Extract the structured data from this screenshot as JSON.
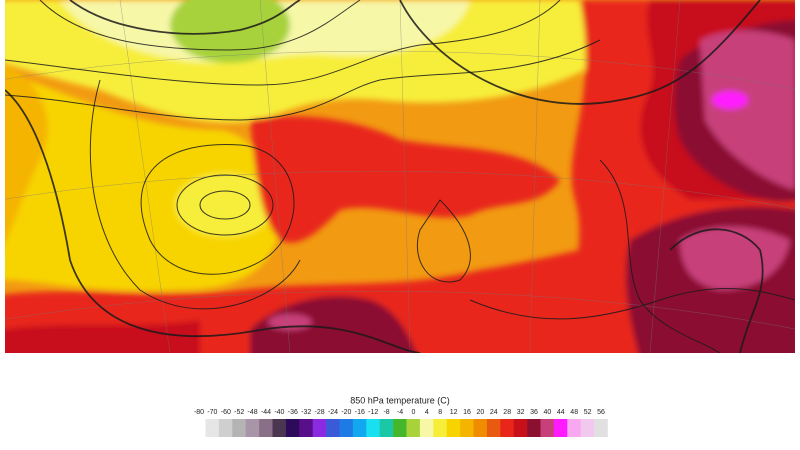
{
  "legend": {
    "title": "850 hPa temperature (C)",
    "ticks": [
      -80,
      -70,
      -60,
      -52,
      -48,
      -44,
      -40,
      -36,
      -32,
      -28,
      -24,
      -20,
      -16,
      -12,
      -8,
      -4,
      0,
      4,
      8,
      12,
      16,
      20,
      24,
      28,
      32,
      36,
      40,
      44,
      48,
      52,
      56
    ],
    "colors": [
      "#e6e6e6",
      "#cfcfcf",
      "#b4b4b4",
      "#a995a8",
      "#8a6f88",
      "#4a3650",
      "#2e0a5a",
      "#5a0f8a",
      "#8a2be2",
      "#3a5ad8",
      "#1e7be6",
      "#12a8f0",
      "#19e0f0",
      "#1ac8a8",
      "#44b82a",
      "#a8d23a",
      "#f7f7a8",
      "#f7ee3a",
      "#f7d400",
      "#f5b400",
      "#f08c00",
      "#e85a10",
      "#e8261a",
      "#c8101a",
      "#8b1030",
      "#c8407a",
      "#ff1aff",
      "#f7a8f0",
      "#f2c8ee",
      "#e0e0e0"
    ]
  }
}
